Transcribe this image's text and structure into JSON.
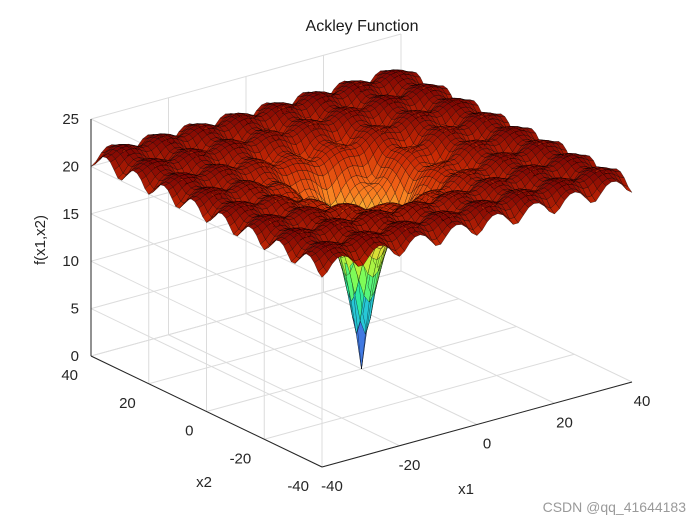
{
  "chart_data": {
    "type": "surface",
    "function": "ackley",
    "title": "Ackley Function",
    "xlabel": "x1",
    "ylabel": "x2",
    "zlabel": "f(x1,x2)",
    "xlim": [
      -40,
      40
    ],
    "ylim": [
      -40,
      40
    ],
    "zlim": [
      0,
      25
    ],
    "x_ticks": [
      -40,
      -20,
      0,
      20,
      40
    ],
    "y_ticks": [
      -40,
      -20,
      0,
      20,
      40
    ],
    "z_ticks": [
      0,
      5,
      10,
      15,
      20,
      25
    ],
    "x_tick_labels": [
      "-40",
      "-20",
      "0",
      "20",
      "40"
    ],
    "y_tick_labels": [
      "-40",
      "-20",
      "0",
      "20",
      "40"
    ],
    "z_tick_labels": [
      "0",
      "5",
      "10",
      "15",
      "20",
      "25"
    ],
    "grid": true,
    "box": true,
    "colormap": "turbo",
    "edge_color": "#000000",
    "colormap_stops": [
      "#30123b",
      "#4662d7",
      "#36aaf9",
      "#1ae4b6",
      "#72fe5e",
      "#c8ef34",
      "#faba39",
      "#f66b19",
      "#ca2a04",
      "#7a0403"
    ],
    "mesh_resolution": 61,
    "minimum": {
      "x1": 0,
      "x2": 0,
      "f": 0
    },
    "view": {
      "azimuth": -37.5,
      "elevation": 30
    }
  },
  "watermark": "CSDN @qq_41644183"
}
